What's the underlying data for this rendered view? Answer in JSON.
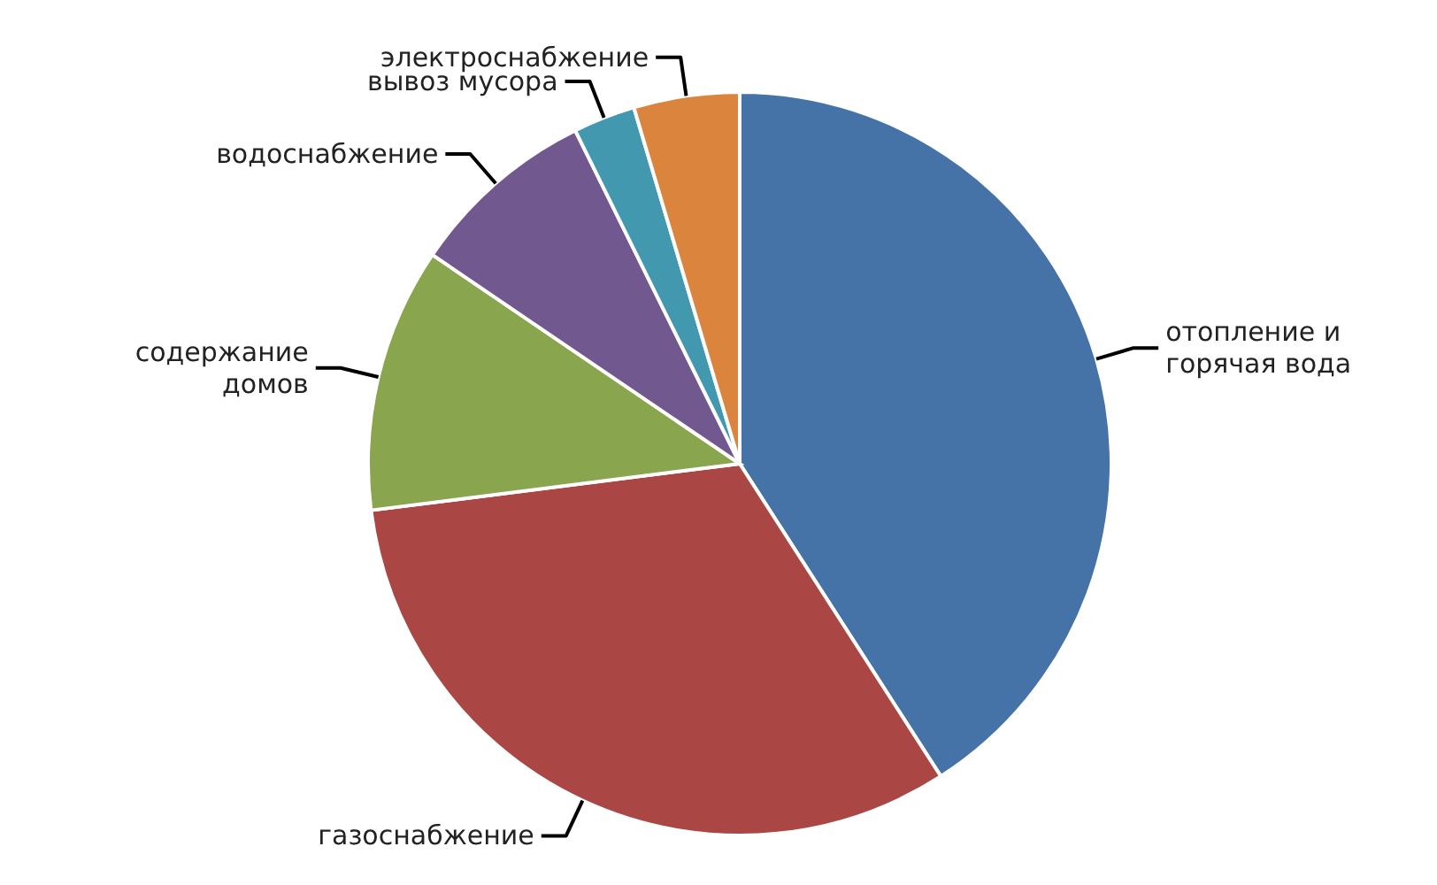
{
  "chart_data": {
    "type": "pie",
    "categories": [
      "отопление и горячая вода",
      "газоснабжение",
      "содержание домов",
      "водоснабжение",
      "вывоз мусора",
      "электроснабжение"
    ],
    "values": [
      40.9,
      32.1,
      11.5,
      8.2,
      2.7,
      4.6
    ],
    "colors": [
      "#4572a7",
      "#aa4643",
      "#89a54e",
      "#71588f",
      "#4198af",
      "#db843d"
    ]
  }
}
